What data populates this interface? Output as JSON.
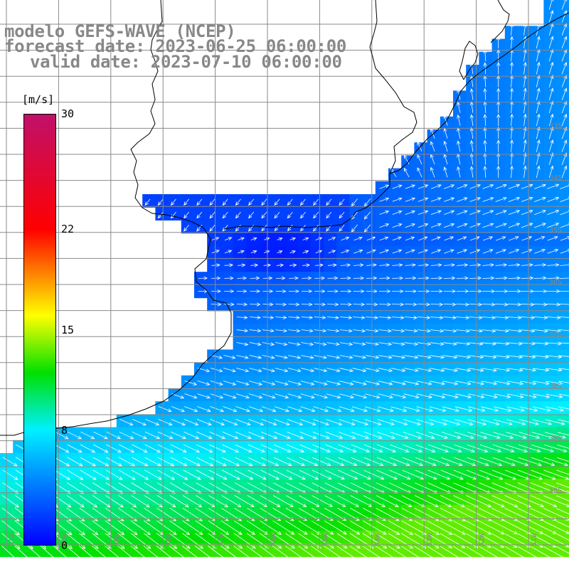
{
  "title": {
    "line1": "modelo GEFS-WAVE (NCEP)",
    "line2": "forecast date: 2023-06-25 06:00:00",
    "line3": "valid date: 2023-07-10 06:00:00"
  },
  "colorbar": {
    "unit": "[m/s]",
    "min": 0,
    "max": 30,
    "ticks": [
      {
        "label": "30",
        "value": 30
      },
      {
        "label": "22",
        "value": 22
      },
      {
        "label": "15",
        "value": 15
      },
      {
        "label": "8",
        "value": 8
      },
      {
        "label": "0",
        "value": 0
      }
    ],
    "stops": [
      {
        "value": 0,
        "color": "#0000ff"
      },
      {
        "value": 8,
        "color": "#00f0ff"
      },
      {
        "value": 12,
        "color": "#00e000"
      },
      {
        "value": 16,
        "color": "#ffff00"
      },
      {
        "value": 22,
        "color": "#ff0000"
      },
      {
        "value": 30,
        "color": "#c0106a"
      }
    ]
  },
  "map": {
    "land_color": "#ffffff",
    "grid_color": "#8a8a8a",
    "coast_color": "#000000",
    "arrow_color": "#ffffff",
    "lat_labels": [
      "33S",
      "34S",
      "35S",
      "36S",
      "37S",
      "38S",
      "39S",
      "40S"
    ],
    "lon_labels": [
      "61W",
      "60W",
      "59W",
      "58W",
      "57W",
      "56W",
      "55W",
      "54W",
      "53W",
      "52W",
      "51W"
    ]
  }
}
